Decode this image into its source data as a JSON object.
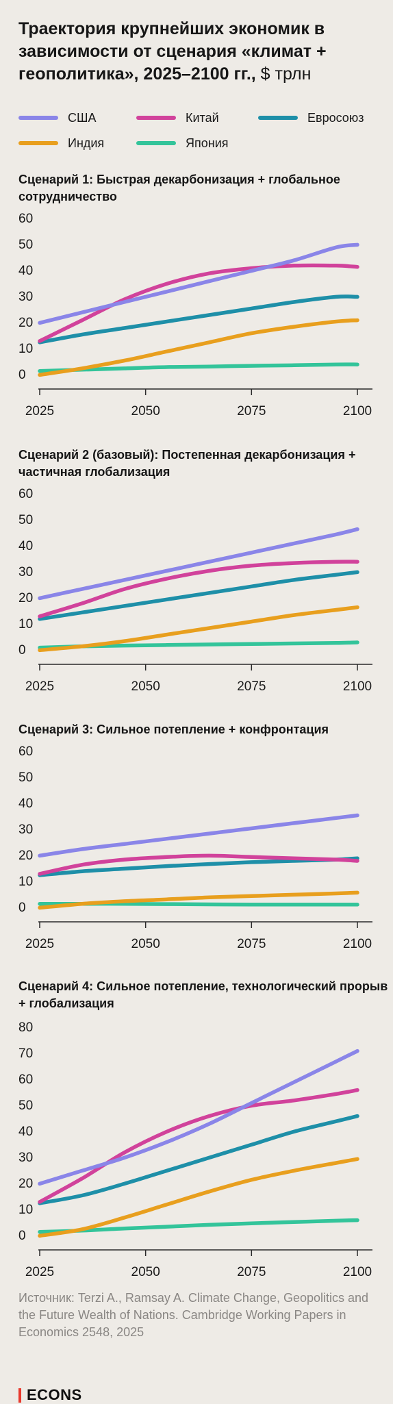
{
  "header": {
    "title": "Траектория крупнейших экономик в зависимости от сценария «климат + геополитика», 2025–2100 гг.,",
    "unit": "$ трлн"
  },
  "colors": {
    "us": "#8a85e8",
    "china": "#d1429b",
    "eu": "#1e8fa8",
    "india": "#e89f1e",
    "japan": "#33c49a"
  },
  "legend": [
    {
      "key": "us",
      "label": "США"
    },
    {
      "key": "china",
      "label": "Китай"
    },
    {
      "key": "eu",
      "label": "Евросоюз"
    },
    {
      "key": "india",
      "label": "Индия"
    },
    {
      "key": "japan",
      "label": "Япония"
    }
  ],
  "chart_data": [
    {
      "type": "line",
      "title": "Сценарий 1: Быстрая декарбонизация + глобальное сотрудничество",
      "xlabel": "",
      "ylabel": "",
      "x_ticks": [
        2025,
        2050,
        2075,
        2100
      ],
      "y_ticks": [
        0,
        10,
        20,
        30,
        40,
        50,
        60
      ],
      "xlim": [
        2025,
        2100
      ],
      "ylim": [
        0,
        60
      ],
      "grid": false,
      "x": [
        2025,
        2035,
        2045,
        2055,
        2065,
        2075,
        2085,
        2095,
        2100
      ],
      "series": [
        {
          "key": "us",
          "name": "США",
          "values": [
            22,
            26,
            30,
            34,
            38,
            42,
            46,
            51,
            52
          ]
        },
        {
          "key": "china",
          "name": "Китай",
          "values": [
            15,
            23,
            31,
            37,
            41,
            43,
            44,
            44,
            43.5
          ]
        },
        {
          "key": "eu",
          "name": "Евросоюз",
          "values": [
            14.5,
            17.5,
            20,
            22.5,
            25,
            27.5,
            30,
            32,
            32
          ]
        },
        {
          "key": "india",
          "name": "Индия",
          "values": [
            2,
            4.5,
            7.5,
            11,
            14.5,
            18,
            20.5,
            22.5,
            23
          ]
        },
        {
          "key": "japan",
          "name": "Япония",
          "values": [
            3.5,
            4,
            4.5,
            5,
            5.2,
            5.5,
            5.7,
            6,
            6
          ]
        }
      ]
    },
    {
      "type": "line",
      "title": "Сценарий 2 (базовый): Постепенная декарбонизация + частичная глобализация",
      "xlabel": "",
      "ylabel": "",
      "x_ticks": [
        2025,
        2050,
        2075,
        2100
      ],
      "y_ticks": [
        0,
        10,
        20,
        30,
        40,
        50,
        60
      ],
      "xlim": [
        2025,
        2100
      ],
      "ylim": [
        0,
        60
      ],
      "grid": false,
      "x": [
        2025,
        2035,
        2045,
        2055,
        2065,
        2075,
        2085,
        2095,
        2100
      ],
      "series": [
        {
          "key": "us",
          "name": "США",
          "values": [
            22,
            25.5,
            29,
            32.5,
            36,
            39.5,
            43,
            46.5,
            48.5
          ]
        },
        {
          "key": "china",
          "name": "Китай",
          "values": [
            15,
            20,
            25.5,
            29.5,
            32.5,
            34.5,
            35.5,
            36,
            36
          ]
        },
        {
          "key": "eu",
          "name": "Евросоюз",
          "values": [
            14,
            16.5,
            19,
            21.5,
            24,
            26.5,
            29,
            31,
            32
          ]
        },
        {
          "key": "india",
          "name": "Индия",
          "values": [
            2,
            3.5,
            5.5,
            8,
            10.5,
            13,
            15.5,
            17.5,
            18.5
          ]
        },
        {
          "key": "japan",
          "name": "Япония",
          "values": [
            3,
            3.5,
            3.8,
            4,
            4.2,
            4.4,
            4.6,
            4.8,
            5
          ]
        }
      ]
    },
    {
      "type": "line",
      "title": "Сценарий 3: Сильное потепление + конфронтация",
      "xlabel": "",
      "ylabel": "",
      "x_ticks": [
        2025,
        2050,
        2075,
        2100
      ],
      "y_ticks": [
        0,
        10,
        20,
        30,
        40,
        50,
        60
      ],
      "xlim": [
        2025,
        2100
      ],
      "ylim": [
        0,
        60
      ],
      "grid": false,
      "x": [
        2025,
        2035,
        2045,
        2055,
        2065,
        2075,
        2085,
        2095,
        2100
      ],
      "series": [
        {
          "key": "us",
          "name": "США",
          "values": [
            22,
            24.5,
            26.5,
            28.5,
            30.5,
            32.5,
            34.5,
            36.5,
            37.5
          ]
        },
        {
          "key": "china",
          "name": "Китай",
          "values": [
            15,
            18.5,
            20.5,
            21.5,
            22,
            21.5,
            21,
            20.5,
            20
          ]
        },
        {
          "key": "eu",
          "name": "Евросоюз",
          "values": [
            14.5,
            16,
            17,
            18,
            18.8,
            19.5,
            20,
            20.5,
            21
          ]
        },
        {
          "key": "india",
          "name": "Индия",
          "values": [
            2,
            3.5,
            4.5,
            5.2,
            6,
            6.5,
            7,
            7.5,
            7.8
          ]
        },
        {
          "key": "japan",
          "name": "Япония",
          "values": [
            3.5,
            3.5,
            3.5,
            3.4,
            3.3,
            3.2,
            3.2,
            3.2,
            3.2
          ]
        }
      ]
    },
    {
      "type": "line",
      "title": "Сценарий 4: Сильное потепление, технологический прорыв + глобализация",
      "xlabel": "",
      "ylabel": "",
      "x_ticks": [
        2025,
        2050,
        2075,
        2100
      ],
      "y_ticks": [
        0,
        10,
        20,
        30,
        40,
        50,
        60,
        70,
        80
      ],
      "xlim": [
        2025,
        2100
      ],
      "ylim": [
        0,
        80
      ],
      "grid": false,
      "x": [
        2025,
        2035,
        2045,
        2055,
        2065,
        2075,
        2085,
        2095,
        2100
      ],
      "series": [
        {
          "key": "us",
          "name": "США",
          "values": [
            22,
            27,
            32,
            38,
            45,
            53,
            61,
            69,
            73
          ]
        },
        {
          "key": "china",
          "name": "Китай",
          "values": [
            15,
            24,
            34,
            42,
            48,
            52,
            54,
            56.5,
            58
          ]
        },
        {
          "key": "eu",
          "name": "Евросоюз",
          "values": [
            14.5,
            17.5,
            22,
            27,
            32,
            37,
            42,
            46,
            48
          ]
        },
        {
          "key": "india",
          "name": "Индия",
          "values": [
            2,
            4.5,
            9,
            14,
            19,
            23.5,
            27,
            30,
            31.5
          ]
        },
        {
          "key": "japan",
          "name": "Япония",
          "values": [
            3.5,
            4,
            4.8,
            5.5,
            6.2,
            6.8,
            7.3,
            7.8,
            8
          ]
        }
      ]
    }
  ],
  "footer": {
    "source": "Источник: Terzi A., Ramsay A. Climate Change, Geopolitics and the Future Wealth of Nations. Cambridge Working Papers in Economics 2548, 2025",
    "logo": "ECONS"
  }
}
